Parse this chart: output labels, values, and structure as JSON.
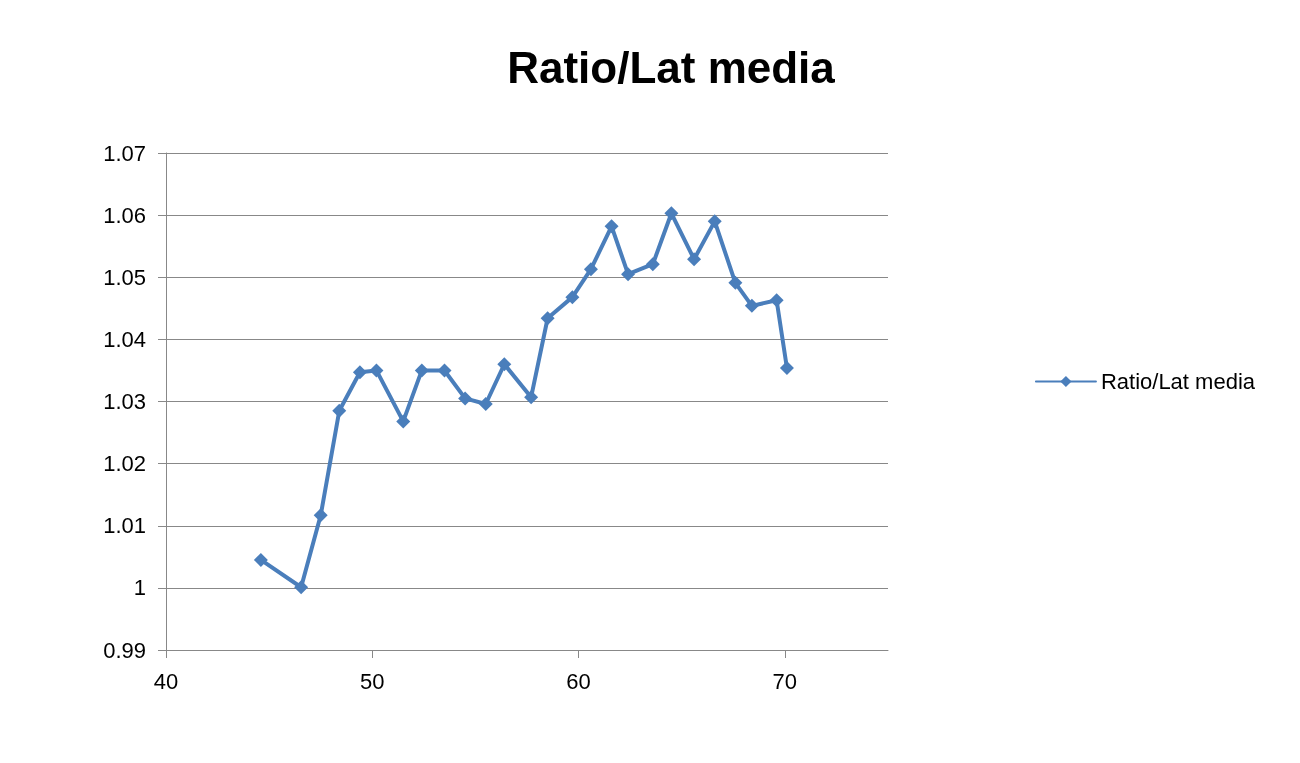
{
  "chart_data": {
    "type": "line",
    "title": "Ratio/Lat media",
    "x": [
      44.6,
      46.55,
      47.5,
      48.4,
      49.4,
      50.2,
      51.5,
      52.4,
      53.5,
      54.5,
      55.5,
      56.4,
      57.7,
      58.5,
      59.7,
      60.6,
      61.6,
      62.4,
      63.6,
      64.5,
      65.6,
      66.6,
      67.6,
      68.4,
      69.6,
      70.1
    ],
    "series": [
      {
        "name": "Ratio/Lat media",
        "color": "#4a7ebb",
        "values": [
          1.0045,
          1.0001,
          1.0117,
          1.0285,
          1.0347,
          1.035,
          1.0268,
          1.035,
          1.035,
          1.0305,
          1.0296,
          1.036,
          1.0307,
          1.0434,
          1.0468,
          1.0513,
          1.0582,
          1.0505,
          1.0521,
          1.0603,
          1.0529,
          1.059,
          1.0491,
          1.0454,
          1.0463,
          1.0354
        ]
      }
    ],
    "xlim": [
      40,
      75
    ],
    "xticks": [
      40,
      50,
      60,
      70
    ],
    "ylim": [
      0.99,
      1.07
    ],
    "yticks": [
      0.99,
      1,
      1.01,
      1.02,
      1.03,
      1.04,
      1.05,
      1.06,
      1.07
    ],
    "grid": "y",
    "legend": "right",
    "marker": "diamond",
    "line_style": "solid"
  }
}
